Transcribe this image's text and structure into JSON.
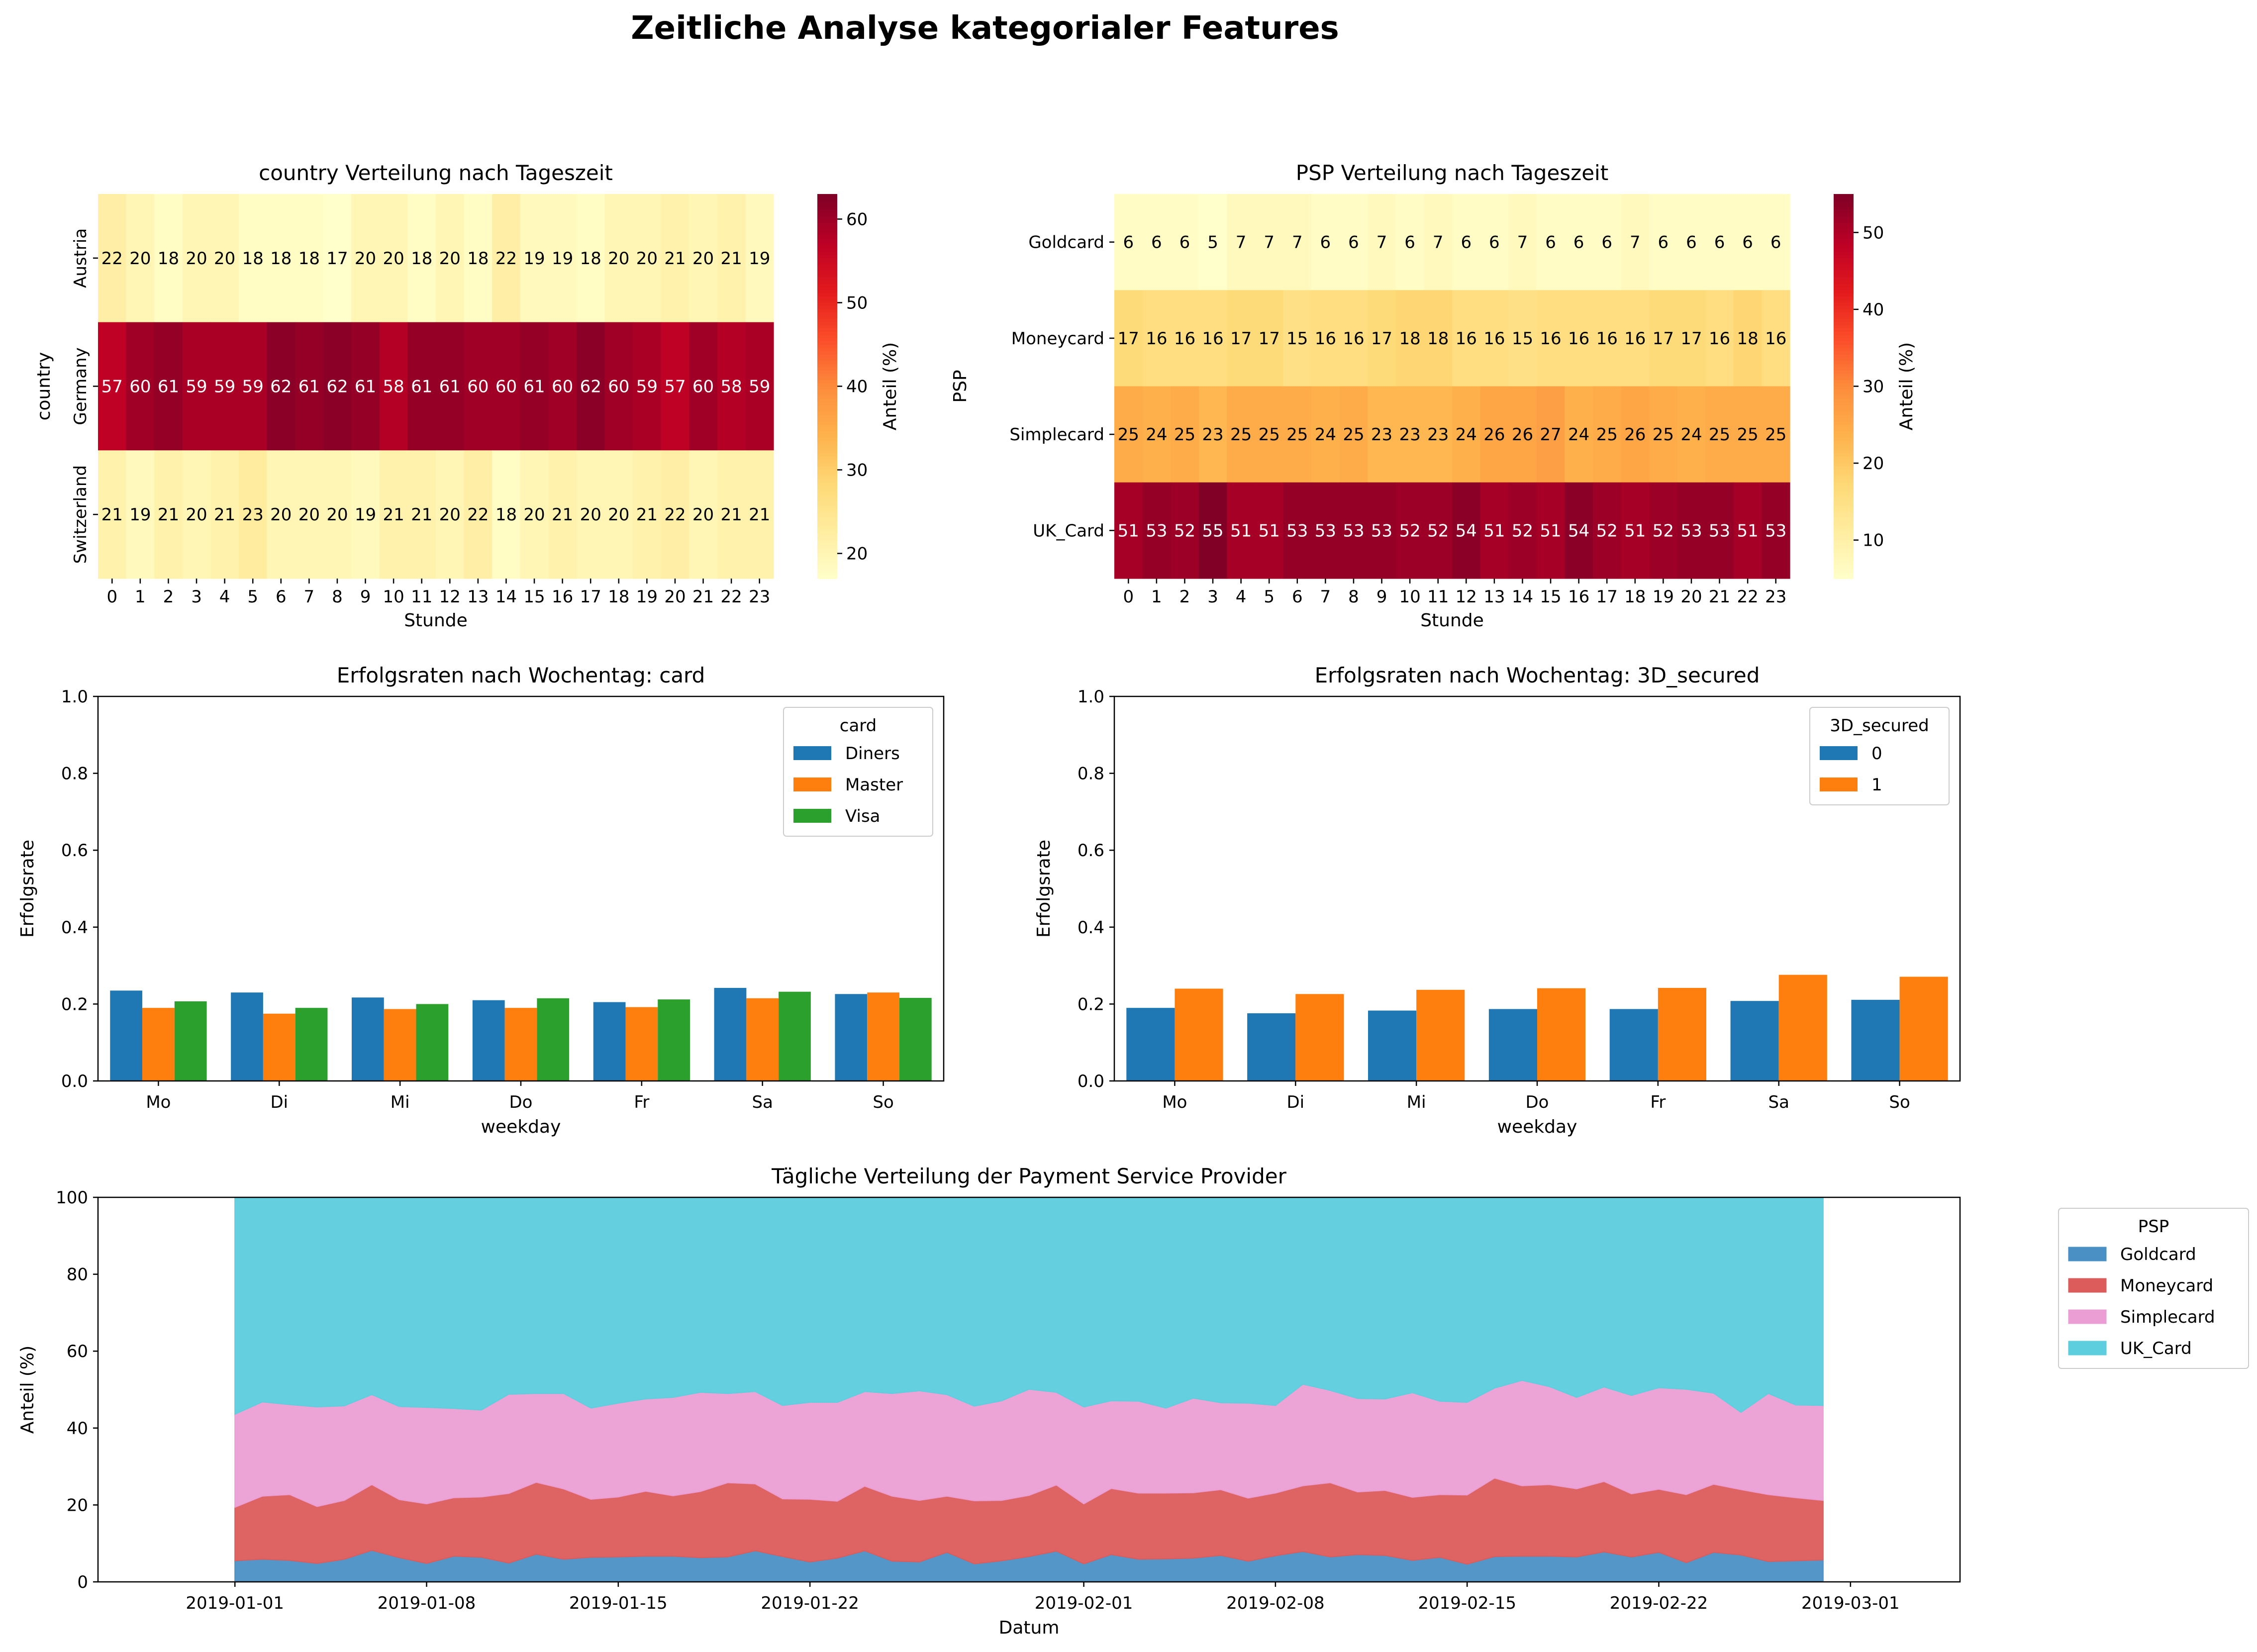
{
  "figure": {
    "title": "Zeitliche Analyse kategorialer Features"
  },
  "chart_data": [
    {
      "type": "heatmap",
      "title": "country Verteilung nach Tageszeit",
      "xlabel": "Stunde",
      "ylabel": "country",
      "x": [
        "0",
        "1",
        "2",
        "3",
        "4",
        "5",
        "6",
        "7",
        "8",
        "9",
        "10",
        "11",
        "12",
        "13",
        "14",
        "15",
        "16",
        "17",
        "18",
        "19",
        "20",
        "21",
        "22",
        "23"
      ],
      "y": [
        "Austria",
        "Germany",
        "Switzerland"
      ],
      "values": [
        [
          22,
          20,
          18,
          20,
          20,
          18,
          18,
          18,
          17,
          20,
          20,
          18,
          20,
          18,
          22,
          19,
          19,
          18,
          20,
          20,
          21,
          20,
          21,
          19
        ],
        [
          57,
          60,
          61,
          59,
          59,
          59,
          62,
          61,
          62,
          61,
          58,
          61,
          61,
          60,
          60,
          61,
          60,
          62,
          60,
          59,
          57,
          60,
          58,
          59
        ],
        [
          21,
          19,
          21,
          20,
          21,
          23,
          20,
          20,
          20,
          19,
          21,
          21,
          20,
          22,
          18,
          20,
          21,
          20,
          20,
          21,
          22,
          20,
          21,
          21
        ]
      ],
      "colorbar": {
        "label": "Anteil (%)",
        "min": 17,
        "max": 63,
        "ticks": [
          20,
          30,
          40,
          50,
          60
        ],
        "colormap": "YlOrRd"
      }
    },
    {
      "type": "heatmap",
      "title": "PSP Verteilung nach Tageszeit",
      "xlabel": "Stunde",
      "ylabel": "PSP",
      "x": [
        "0",
        "1",
        "2",
        "3",
        "4",
        "5",
        "6",
        "7",
        "8",
        "9",
        "10",
        "11",
        "12",
        "13",
        "14",
        "15",
        "16",
        "17",
        "18",
        "19",
        "20",
        "21",
        "22",
        "23"
      ],
      "y": [
        "Goldcard",
        "Moneycard",
        "Simplecard",
        "UK_Card"
      ],
      "values": [
        [
          6,
          6,
          6,
          5,
          7,
          7,
          7,
          6,
          6,
          7,
          6,
          7,
          6,
          6,
          7,
          6,
          6,
          6,
          7,
          6,
          6,
          6,
          6,
          6
        ],
        [
          17,
          16,
          16,
          16,
          17,
          17,
          15,
          16,
          16,
          17,
          18,
          18,
          16,
          16,
          15,
          16,
          16,
          16,
          16,
          17,
          17,
          16,
          18,
          16
        ],
        [
          25,
          24,
          25,
          23,
          25,
          25,
          25,
          24,
          25,
          23,
          23,
          23,
          24,
          26,
          26,
          27,
          24,
          25,
          26,
          25,
          24,
          25,
          25,
          25
        ],
        [
          51,
          53,
          52,
          55,
          51,
          51,
          53,
          53,
          53,
          53,
          52,
          52,
          54,
          51,
          52,
          51,
          54,
          52,
          51,
          52,
          53,
          53,
          51,
          53
        ]
      ],
      "colorbar": {
        "label": "Anteil (%)",
        "min": 5,
        "max": 55,
        "ticks": [
          10,
          20,
          30,
          40,
          50
        ],
        "colormap": "YlOrRd"
      }
    },
    {
      "type": "bar",
      "title": "Erfolgsraten nach Wochentag: card",
      "xlabel": "weekday",
      "ylabel": "Erfolgsrate",
      "categories": [
        "Mo",
        "Di",
        "Mi",
        "Do",
        "Fr",
        "Sa",
        "So"
      ],
      "ylim": [
        0,
        1
      ],
      "yticks": [
        "0.0",
        "0.2",
        "0.4",
        "0.6",
        "0.8",
        "1.0"
      ],
      "legend": {
        "title": "card",
        "placement": "top-right"
      },
      "series": [
        {
          "name": "Diners",
          "color": "#1f77b4",
          "values": [
            0.235,
            0.23,
            0.217,
            0.21,
            0.205,
            0.242,
            0.226
          ]
        },
        {
          "name": "Master",
          "color": "#ff7f0e",
          "values": [
            0.19,
            0.175,
            0.187,
            0.19,
            0.192,
            0.215,
            0.23
          ]
        },
        {
          "name": "Visa",
          "color": "#2ca02c",
          "values": [
            0.207,
            0.19,
            0.2,
            0.215,
            0.212,
            0.232,
            0.216
          ]
        }
      ]
    },
    {
      "type": "bar",
      "title": "Erfolgsraten nach Wochentag: 3D_secured",
      "xlabel": "weekday",
      "ylabel": "Erfolgsrate",
      "categories": [
        "Mo",
        "Di",
        "Mi",
        "Do",
        "Fr",
        "Sa",
        "So"
      ],
      "ylim": [
        0,
        1
      ],
      "yticks": [
        "0.0",
        "0.2",
        "0.4",
        "0.6",
        "0.8",
        "1.0"
      ],
      "legend": {
        "title": "3D_secured",
        "placement": "top-right"
      },
      "series": [
        {
          "name": "0",
          "color": "#1f77b4",
          "values": [
            0.19,
            0.176,
            0.183,
            0.187,
            0.187,
            0.208,
            0.211
          ]
        },
        {
          "name": "1",
          "color": "#ff7f0e",
          "values": [
            0.24,
            0.226,
            0.237,
            0.241,
            0.242,
            0.276,
            0.271
          ]
        }
      ]
    },
    {
      "type": "area",
      "title": "Tägliche Verteilung der Payment Service Provider",
      "xlabel": "Datum",
      "ylabel": "Anteil (%)",
      "x_start": "2019-01-01",
      "x_end": "2019-02-28",
      "xlim": [
        "2018-12-27",
        "2019-03-05"
      ],
      "xticks": [
        "2019-01-01",
        "2019-01-08",
        "2019-01-15",
        "2019-01-22",
        "2019-02-01",
        "2019-02-08",
        "2019-02-15",
        "2019-02-22",
        "2019-03-01"
      ],
      "ylim": [
        0,
        100
      ],
      "yticks": [
        "0",
        "20",
        "40",
        "60",
        "80",
        "100"
      ],
      "legend": {
        "title": "PSP",
        "placement": "outside-right"
      },
      "series": [
        {
          "name": "Goldcard",
          "color": "#4a90c4",
          "values": [
            5.5,
            5.9,
            5.6,
            4.8,
            5.9,
            8.2,
            6.3,
            4.8,
            6.7,
            6.4,
            4.9,
            7.2,
            5.9,
            6.4,
            6.5,
            6.7,
            6.7,
            6.3,
            6.5,
            8.1,
            6.6,
            5.2,
            6.2,
            8.1,
            5.4,
            5.2,
            7.7,
            4.7,
            5.5,
            6.6,
            8.0,
            4.7,
            7.1,
            5.9,
            6.0,
            6.2,
            6.9,
            5.4,
            6.8,
            7.9,
            6.5,
            7.1,
            6.9,
            5.6,
            6.4,
            4.6,
            6.6,
            6.7,
            6.7,
            6.5,
            7.8,
            6.5,
            7.7,
            5.0,
            7.7,
            7.0,
            5.3,
            5.5,
            5.7
          ]
        },
        {
          "name": "Moneycard",
          "color": "#dc5c5c",
          "values": [
            13.9,
            16.4,
            17.1,
            14.8,
            15.3,
            17.1,
            15.1,
            15.5,
            15.2,
            15.7,
            18.1,
            18.7,
            18.3,
            15.1,
            15.6,
            16.9,
            15.7,
            17.2,
            19.3,
            17.4,
            15.0,
            16.3,
            14.8,
            16.8,
            16.9,
            16.0,
            14.6,
            16.4,
            15.7,
            15.9,
            17.2,
            15.6,
            17.2,
            17.2,
            17.1,
            17.0,
            17.1,
            16.4,
            16.3,
            17.1,
            19.3,
            16.3,
            16.9,
            16.4,
            16.3,
            18.0,
            20.4,
            18.3,
            18.6,
            17.7,
            18.3,
            16.4,
            16.4,
            17.7,
            17.7,
            17.0,
            17.4,
            16.4,
            15.5
          ]
        },
        {
          "name": "Simplecard",
          "color": "#eb9ed4",
          "values": [
            24.2,
            24.5,
            23.4,
            25.9,
            24.6,
            23.4,
            24.2,
            25.1,
            23.2,
            22.6,
            25.8,
            23.1,
            24.8,
            23.7,
            24.4,
            24.0,
            25.6,
            25.8,
            23.2,
            24.0,
            24.3,
            25.2,
            25.7,
            24.6,
            26.7,
            28.5,
            26.4,
            24.6,
            25.9,
            27.6,
            24.1,
            25.2,
            22.8,
            23.9,
            22.1,
            24.6,
            22.6,
            24.7,
            22.8,
            26.4,
            24.0,
            24.3,
            23.8,
            27.2,
            24.3,
            24.1,
            23.4,
            27.4,
            25.5,
            23.8,
            24.6,
            25.6,
            26.4,
            27.4,
            23.7,
            20.1,
            26.3,
            24.1,
            24.7
          ]
        },
        {
          "name": "UK_Card",
          "color": "#5ccedd",
          "values": [
            56.4,
            53.2,
            53.9,
            54.5,
            54.2,
            51.3,
            54.4,
            54.6,
            54.9,
            55.3,
            51.2,
            51.0,
            51.0,
            54.8,
            53.5,
            52.4,
            52.0,
            50.7,
            51.0,
            50.5,
            54.1,
            53.3,
            53.3,
            50.5,
            51.0,
            50.3,
            51.3,
            54.3,
            52.9,
            49.9,
            50.7,
            54.5,
            52.9,
            53.0,
            54.8,
            52.2,
            53.4,
            53.5,
            54.1,
            48.6,
            50.2,
            52.3,
            52.4,
            50.8,
            53.0,
            53.3,
            49.6,
            47.6,
            49.2,
            52.0,
            49.3,
            51.5,
            49.5,
            49.9,
            50.9,
            55.9,
            51.0,
            54.0,
            54.1
          ]
        }
      ]
    }
  ]
}
